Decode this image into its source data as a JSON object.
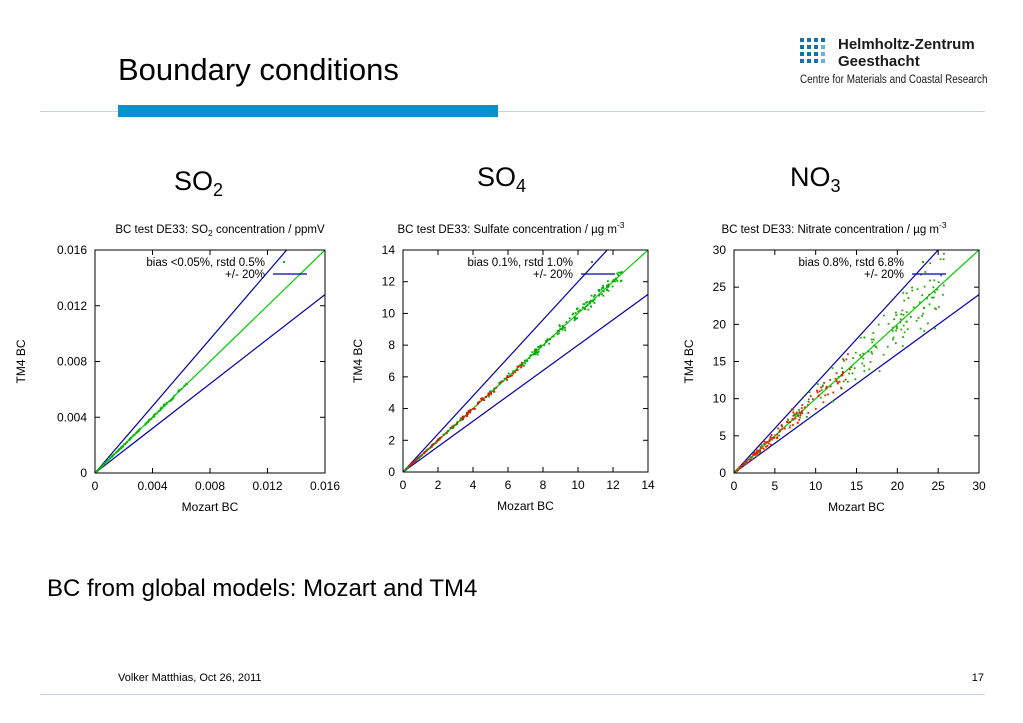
{
  "slide": {
    "title": "Boundary conditions",
    "subtitle": "BC from global models: Mozart and TM4",
    "footer_left": "Volker Matthias, Oct 26, 2011",
    "page_number": "17",
    "accent_color": "#0a91c8",
    "rule_color": "#bcd6e8"
  },
  "logo": {
    "name_line1": "Helmholtz-Zentrum",
    "name_line2": "Geesthacht",
    "tagline": "Centre for Materials and Coastal Research"
  },
  "headings": [
    {
      "base": "SO",
      "sub": "2"
    },
    {
      "base": "SO",
      "sub": "4"
    },
    {
      "base": "NO",
      "sub": "3"
    }
  ],
  "chart_data": [
    {
      "type": "scatter",
      "title_parts": [
        "BC test DE33: SO",
        "2",
        " concentration / ppmV"
      ],
      "title_format": "sub",
      "xlabel": "Mozart BC",
      "ylabel": "TM4 BC",
      "xlim": [
        0,
        0.016
      ],
      "ylim": [
        0,
        0.016
      ],
      "xticks": [
        "0",
        "0.004",
        "0.008",
        "0.012",
        "0.016"
      ],
      "yticks": [
        "0",
        "0.004",
        "0.008",
        "0.012",
        "0.016"
      ],
      "grid": false,
      "legend_position": "top-left",
      "legend": [
        {
          "label": "bias <0.05%, rstd 0.5%",
          "marker": "dot"
        },
        {
          "label": "+/- 20%",
          "marker": "line"
        }
      ],
      "reference_lines": [
        {
          "name": "1:1",
          "slope": 1.0,
          "color": "#00cc00"
        },
        {
          "name": "+20%",
          "slope": 1.2,
          "color": "#0000aa"
        },
        {
          "name": "-20%",
          "slope": 0.8,
          "color": "#0000aa"
        }
      ],
      "point_colors": [
        "#00bb00",
        "#00bb00"
      ],
      "scatter_extent": 0.0065,
      "scatter_spread": 0.02
    },
    {
      "type": "scatter",
      "title_parts": [
        "BC test DE33: Sulfate concentration / µg m",
        "-3",
        ""
      ],
      "title_format": "sup",
      "xlabel": "Mozart BC",
      "ylabel": "TM4 BC",
      "xlim": [
        0,
        14
      ],
      "ylim": [
        0,
        14
      ],
      "xticks": [
        "0",
        "2",
        "4",
        "6",
        "8",
        "10",
        "12",
        "14"
      ],
      "yticks": [
        "0",
        "2",
        "4",
        "6",
        "8",
        "10",
        "12",
        "14"
      ],
      "grid": false,
      "legend_position": "top-left",
      "legend": [
        {
          "label": "bias 0.1%, rstd 1.0%",
          "marker": "dot"
        },
        {
          "label": "+/- 20%",
          "marker": "line"
        }
      ],
      "reference_lines": [
        {
          "name": "1:1",
          "slope": 1.0,
          "color": "#00cc00"
        },
        {
          "name": "+20%",
          "slope": 1.2,
          "color": "#0000aa"
        },
        {
          "name": "-20%",
          "slope": 0.8,
          "color": "#0000aa"
        }
      ],
      "point_colors": [
        "#cc2200",
        "#00aa00"
      ],
      "scatter_extent": 12.5,
      "scatter_spread": 0.03
    },
    {
      "type": "scatter",
      "title_parts": [
        "BC test DE33: Nitrate concentration / µg m",
        "-3",
        ""
      ],
      "title_format": "sup",
      "xlabel": "Mozart BC",
      "ylabel": "TM4 BC",
      "xlim": [
        0,
        30
      ],
      "ylim": [
        0,
        30
      ],
      "xticks": [
        "0",
        "5",
        "10",
        "15",
        "20",
        "25",
        "30"
      ],
      "yticks": [
        "0",
        "5",
        "10",
        "15",
        "20",
        "25",
        "30"
      ],
      "grid": false,
      "legend_position": "top-left",
      "legend": [
        {
          "label": "bias 0.8%, rstd 6.8%",
          "marker": "dot"
        },
        {
          "label": "+/- 20%",
          "marker": "line"
        }
      ],
      "reference_lines": [
        {
          "name": "1:1",
          "slope": 1.0,
          "color": "#00cc00"
        },
        {
          "name": "+20%",
          "slope": 1.2,
          "color": "#0000aa"
        },
        {
          "name": "-20%",
          "slope": 0.8,
          "color": "#0000aa"
        }
      ],
      "point_colors": [
        "#dd2200",
        "#22aa00"
      ],
      "scatter_extent": 26,
      "scatter_spread": 0.12
    }
  ]
}
